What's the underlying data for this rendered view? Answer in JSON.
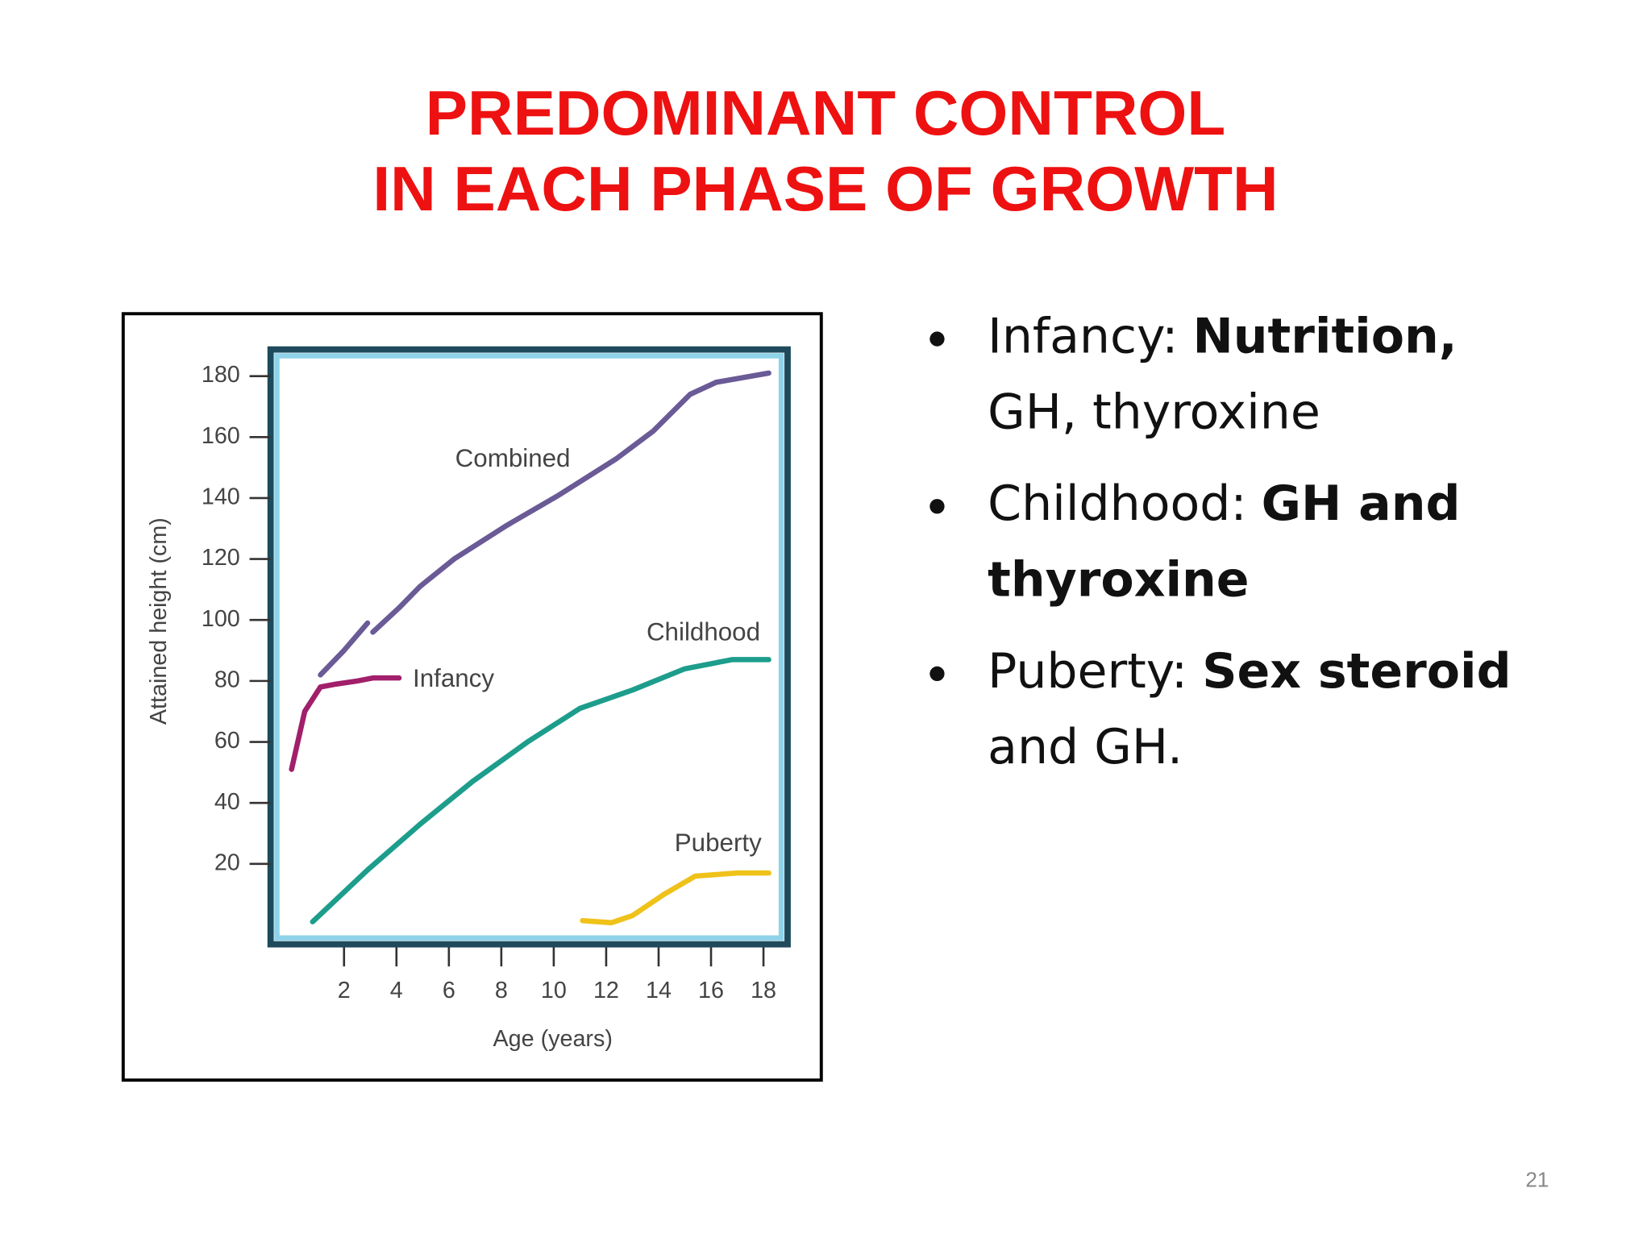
{
  "title": [
    "PREDOMINANT CONTROL",
    "IN EACH PHASE OF GROWTH"
  ],
  "bullets": [
    [
      [
        {
          "text": "Infancy:"
        },
        {
          "text": "Nutrition,",
          "bold": true
        }
      ],
      [
        {
          "text": "GH, thyroxine"
        }
      ]
    ],
    [
      [
        {
          "text": "Childhood:"
        },
        {
          "text": "GH and",
          "bold": true
        }
      ],
      [
        {
          "text": "thyroxine",
          "bold": true
        }
      ]
    ],
    [
      [
        {
          "text": "Puberty:"
        },
        {
          "text": "Sex steroid",
          "bold": true
        }
      ],
      [
        {
          "text": "and GH."
        }
      ]
    ]
  ],
  "page_number": "21",
  "chart_data": {
    "type": "line",
    "x_label": "Age (years)",
    "y_label": "Attained height (cm)",
    "xlim": [
      -0.6,
      18.8
    ],
    "ylim": [
      -5,
      187
    ],
    "xticks": [
      2,
      4,
      6,
      8,
      10,
      12,
      14,
      16,
      18
    ],
    "yticks": [
      20,
      40,
      60,
      80,
      100,
      120,
      140,
      160,
      180
    ],
    "grid": false,
    "series": [
      {
        "name": "Combined",
        "color": "#6a5a96",
        "x": [
          1.1,
          2.0,
          2.9,
          3.0,
          3.1,
          4.1,
          4.9,
          6.2,
          8.2,
          10.2,
          12.4,
          13.8,
          15.2,
          16.2,
          18.2
        ],
        "values": [
          82,
          90,
          99,
          null,
          96,
          104,
          111,
          120,
          131,
          141,
          153,
          162,
          174,
          178,
          181
        ]
      },
      {
        "name": "Childhood",
        "color": "#1d9d8c",
        "x": [
          0.8,
          2.9,
          4.9,
          6.9,
          9.0,
          11.0,
          13.0,
          15.0,
          16.8,
          18.2
        ],
        "values": [
          1,
          18,
          33,
          47,
          60,
          71,
          77,
          84,
          87,
          87
        ]
      },
      {
        "name": "Infancy",
        "color": "#a11f6b",
        "x": [
          0,
          0.5,
          1.1,
          1.7,
          2.5,
          3.1,
          4.1
        ],
        "values": [
          51,
          70,
          78,
          79,
          80,
          81,
          81
        ]
      },
      {
        "name": "Puberty",
        "color": "#efc21a",
        "x": [
          11.1,
          12.2,
          13.0,
          14.2,
          15.4,
          17.0,
          18.2
        ],
        "values": [
          1.4,
          0.7,
          3,
          10,
          16,
          17,
          17
        ]
      }
    ]
  }
}
